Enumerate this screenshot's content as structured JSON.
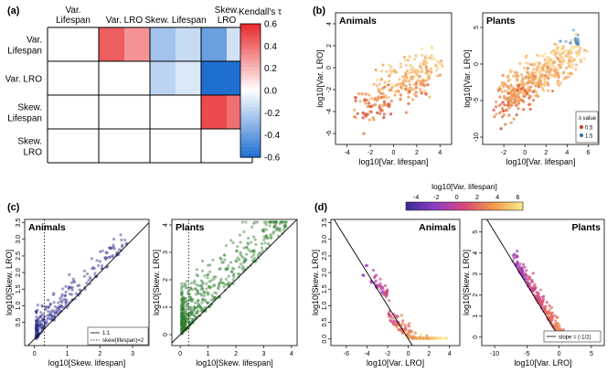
{
  "panel_labels": {
    "a": "(a)",
    "b": "(b)",
    "c": "(c)",
    "d": "(d)"
  },
  "chart_data": [
    {
      "id": "a",
      "type": "heatmap",
      "row_labels": [
        [
          "Var.",
          "Lifespan"
        ],
        [
          "Var. LRO"
        ],
        [
          "Skew.",
          "Lifespan"
        ],
        [
          "Skew.",
          "LRO"
        ]
      ],
      "col_labels": [
        [
          "Var.",
          "Lifespan"
        ],
        [
          "Var. LRO"
        ],
        [
          "Skew. Lifespan"
        ],
        [
          "Skew.",
          "LRO"
        ]
      ],
      "cells": [
        {
          "row": 0,
          "col": 1,
          "values": [
            0.45,
            0.3
          ]
        },
        {
          "row": 0,
          "col": 2,
          "values": [
            -0.25,
            -0.15
          ]
        },
        {
          "row": 0,
          "col": 3,
          "values": [
            -0.4,
            -0.12
          ]
        },
        {
          "row": 1,
          "col": 2,
          "values": [
            -0.18,
            -0.1
          ]
        },
        {
          "row": 1,
          "col": 3,
          "values": [
            -0.6,
            -0.6
          ]
        },
        {
          "row": 2,
          "col": 3,
          "values": [
            0.5,
            0.4
          ]
        }
      ],
      "colorbar": {
        "title": "Kendall's τ",
        "ticks": [
          "0.6",
          "0.4",
          "0.2",
          "0.0",
          "-0.2",
          "-0.4",
          "-0.6"
        ],
        "range": [
          -0.6,
          0.6
        ],
        "colors": [
          "#1f6fd1",
          "#ffffff",
          "#e8272a"
        ]
      }
    },
    {
      "id": "b",
      "type": "scatter",
      "xlabel": "log10[Var. lifespan]",
      "ylabel": "log10[Var. LRO]",
      "panels": [
        {
          "title": "Animals",
          "xlim": [
            -5,
            5
          ],
          "ylim": [
            -7,
            5
          ],
          "xticks": [
            "-4",
            "-2",
            "0",
            "2",
            "4"
          ],
          "yticks": [
            "4",
            "2",
            "0",
            "-2",
            "-4",
            "-6"
          ]
        },
        {
          "title": "Plants",
          "xlim": [
            -4,
            7
          ],
          "ylim": [
            -11,
            7
          ],
          "xticks": [
            "-2",
            "0",
            "2",
            "4",
            "6"
          ],
          "yticks": [
            "5",
            "0",
            "-5",
            "-10"
          ]
        }
      ],
      "legend": {
        "title": "λ value",
        "items": [
          {
            "label": "0.5",
            "color": "#c0392b"
          },
          {
            "label": "1.5",
            "color": "#2c6fa8"
          }
        ],
        "placement": "bottom-right"
      }
    },
    {
      "id": "c",
      "type": "scatter",
      "xlabel": "log10[Skew. lifespan]",
      "ylabel": "log10[Skew. LRO]",
      "panels": [
        {
          "title": "Animals",
          "xlim": [
            -0.3,
            3.5
          ],
          "ylim": [
            -0.2,
            3.6
          ],
          "xticks": [
            "0",
            "1",
            "2",
            "3"
          ],
          "yticks": [
            "3.5",
            "3.0",
            "2.5",
            "2.0",
            "1.5",
            "1.0",
            "0.5"
          ]
        },
        {
          "title": "Plants",
          "xlim": [
            -0.3,
            4.2
          ],
          "ylim": [
            -0.4,
            4.2
          ],
          "xticks": [
            "0",
            "1",
            "2",
            "3",
            "4"
          ],
          "yticks": [
            "4",
            "3",
            "2",
            "1",
            "0"
          ]
        }
      ],
      "legend": {
        "items": [
          {
            "label": "1:1",
            "style": "solid"
          },
          {
            "label": "skew(lifespan)=2",
            "style": "dotted"
          }
        ],
        "placement": "bottom-right"
      }
    },
    {
      "id": "d",
      "type": "scatter",
      "xlabel": "log10[Var. LRO]",
      "ylabel": "log10[Skew. LRO]",
      "colorbar": {
        "title": "log10[Var. lifespan]",
        "ticks": [
          "-4",
          "-2",
          "0",
          "2",
          "4",
          "6"
        ],
        "range": [
          -5,
          6.5
        ],
        "colors": [
          "#3b2b8f",
          "#8c3fc8",
          "#d9487a",
          "#f19a4a",
          "#fbeb8c"
        ]
      },
      "panels": [
        {
          "title": "Animals",
          "xlim": [
            -7.5,
            5
          ],
          "ylim": [
            -0.2,
            3.6
          ],
          "xticks": [
            "-6",
            "-4",
            "-2",
            "0",
            "2",
            "4"
          ],
          "yticks": [
            "3.5",
            "3.0",
            "2.5",
            "2.0",
            "1.5",
            "1.0",
            "0.5",
            "0.0"
          ]
        },
        {
          "title": "Plants",
          "xlim": [
            -12,
            7
          ],
          "ylim": [
            -0.4,
            5.6
          ],
          "xticks": [
            "-10",
            "-5",
            "0",
            "5"
          ],
          "yticks": [
            "5",
            "4",
            "3",
            "2",
            "1",
            "0"
          ]
        }
      ],
      "legend": {
        "items": [
          {
            "label": "slope = (-1/2)",
            "style": "solid"
          }
        ],
        "placement": "bottom-right"
      }
    }
  ]
}
